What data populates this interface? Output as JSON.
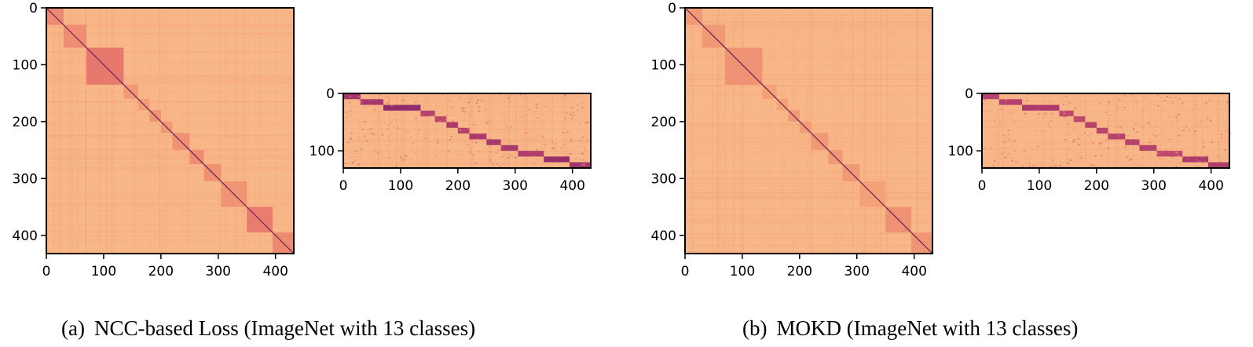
{
  "panels": [
    {
      "caption_tag": "(a)",
      "caption_text": "NCC-based Loss (ImageNet with 13 classes)",
      "blocks": [
        [
          0,
          30
        ],
        [
          30,
          70
        ],
        [
          70,
          135
        ],
        [
          135,
          160
        ],
        [
          160,
          180
        ],
        [
          180,
          200
        ],
        [
          200,
          220
        ],
        [
          220,
          250
        ],
        [
          250,
          275
        ],
        [
          275,
          305
        ],
        [
          305,
          350
        ],
        [
          350,
          395
        ],
        [
          395,
          432
        ]
      ],
      "block_intensity": [
        0.55,
        0.5,
        0.75,
        0.35,
        0.3,
        0.45,
        0.35,
        0.45,
        0.5,
        0.45,
        0.4,
        0.7,
        0.55
      ]
    },
    {
      "caption_tag": "(b)",
      "caption_text": "MOKD (ImageNet with 13 classes)",
      "blocks": [
        [
          0,
          30
        ],
        [
          30,
          70
        ],
        [
          70,
          135
        ],
        [
          135,
          160
        ],
        [
          160,
          180
        ],
        [
          180,
          200
        ],
        [
          200,
          220
        ],
        [
          220,
          250
        ],
        [
          250,
          275
        ],
        [
          275,
          305
        ],
        [
          305,
          350
        ],
        [
          350,
          395
        ],
        [
          395,
          432
        ]
      ],
      "block_intensity": [
        0.35,
        0.35,
        0.45,
        0.25,
        0.25,
        0.35,
        0.3,
        0.35,
        0.35,
        0.35,
        0.25,
        0.45,
        0.4
      ]
    }
  ],
  "chart_data": [
    {
      "type": "heatmap",
      "panel": "a-left",
      "x_range": [
        0,
        432
      ],
      "y_range": [
        0,
        432
      ],
      "xticks": [
        0,
        100,
        200,
        300,
        400
      ],
      "yticks": [
        0,
        100,
        200,
        300,
        400
      ],
      "colormap": "magma",
      "value_range": [
        0.4,
        1.0
      ]
    },
    {
      "type": "heatmap",
      "panel": "a-right",
      "x_range": [
        0,
        432
      ],
      "y_range": [
        0,
        130
      ],
      "xticks": [
        0,
        100,
        200,
        300,
        400
      ],
      "yticks": [
        0,
        100
      ],
      "colormap": "magma",
      "value_range": [
        0.4,
        1.0
      ]
    },
    {
      "type": "heatmap",
      "panel": "b-left",
      "x_range": [
        0,
        432
      ],
      "y_range": [
        0,
        432
      ],
      "xticks": [
        0,
        100,
        200,
        300,
        400
      ],
      "yticks": [
        0,
        100,
        200,
        300,
        400
      ],
      "colormap": "magma",
      "value_range": [
        0.4,
        1.0
      ]
    },
    {
      "type": "heatmap",
      "panel": "b-right",
      "x_range": [
        0,
        432
      ],
      "y_range": [
        0,
        130
      ],
      "xticks": [
        0,
        100,
        200,
        300,
        400
      ],
      "yticks": [
        0,
        100
      ],
      "colormap": "magma",
      "value_range": [
        0.4,
        1.0
      ]
    }
  ]
}
